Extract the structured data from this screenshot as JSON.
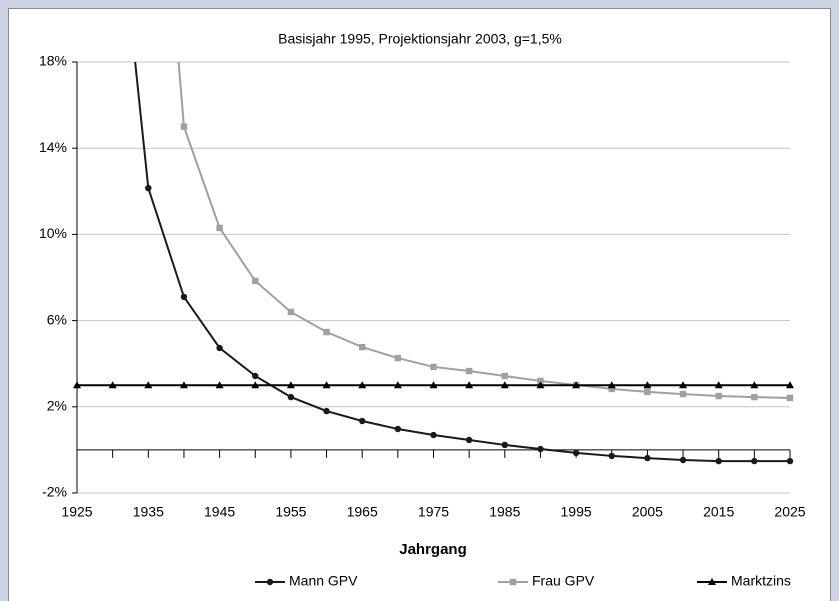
{
  "chart_data": {
    "type": "line",
    "title": "Basisjahr 1995, Projektionsjahr 2003, g=1,5%",
    "x_label": "Jahrgang",
    "series": [
      {
        "name": "Mann GPV",
        "color": "#1a1a1a",
        "marker": "circle",
        "x": [
          1930,
          1935,
          1940,
          1945,
          1950,
          1955,
          1960,
          1965,
          1970,
          1975,
          1980,
          1985,
          1990,
          1995,
          2000,
          2005,
          2010,
          2015,
          2020,
          2025
        ],
        "values": [
          28,
          12.15,
          7.1,
          4.73,
          3.43,
          2.45,
          1.8,
          1.34,
          0.97,
          0.69,
          0.46,
          0.23,
          0.04,
          -0.14,
          -0.28,
          -0.38,
          -0.47,
          -0.52,
          -0.52,
          -0.52
        ]
      },
      {
        "name": "Frau GPV",
        "color": "#a0a0a0",
        "marker": "square",
        "x": [
          1935,
          1940,
          1945,
          1950,
          1955,
          1960,
          1965,
          1970,
          1975,
          1980,
          1985,
          1990,
          1995,
          2000,
          2005,
          2010,
          2015,
          2020,
          2025
        ],
        "values": [
          35,
          15,
          10.3,
          7.84,
          6.4,
          5.47,
          4.77,
          4.26,
          3.85,
          3.66,
          3.43,
          3.2,
          3.01,
          2.83,
          2.69,
          2.59,
          2.5,
          2.45,
          2.41
        ]
      },
      {
        "name": "Marktzins",
        "color": "#000000",
        "marker": "triangle",
        "x": [
          1925,
          1930,
          1935,
          1940,
          1945,
          1950,
          1955,
          1960,
          1965,
          1970,
          1975,
          1980,
          1985,
          1990,
          1995,
          2000,
          2005,
          2010,
          2015,
          2020,
          2025
        ],
        "values": [
          3,
          3,
          3,
          3,
          3,
          3,
          3,
          3,
          3,
          3,
          3,
          3,
          3,
          3,
          3,
          3,
          3,
          3,
          3,
          3,
          3
        ]
      }
    ],
    "xlim": [
      1925,
      2025
    ],
    "xticks": [
      1925,
      1935,
      1945,
      1955,
      1965,
      1975,
      1985,
      1995,
      2005,
      2015,
      2025
    ],
    "x_minor_ticks": [
      1930,
      1940,
      1950,
      1960,
      1970,
      1980,
      1990,
      2000,
      2010,
      2020
    ],
    "ylim": [
      -2,
      18
    ],
    "yticks": [
      {
        "value": -2,
        "label": "-2%"
      },
      {
        "value": 2,
        "label": "2%"
      },
      {
        "value": 6,
        "label": "6%"
      },
      {
        "value": 10,
        "label": "10%"
      },
      {
        "value": 14,
        "label": "14%"
      },
      {
        "value": 18,
        "label": "18%"
      }
    ],
    "grid": true,
    "legend": "bottom"
  }
}
